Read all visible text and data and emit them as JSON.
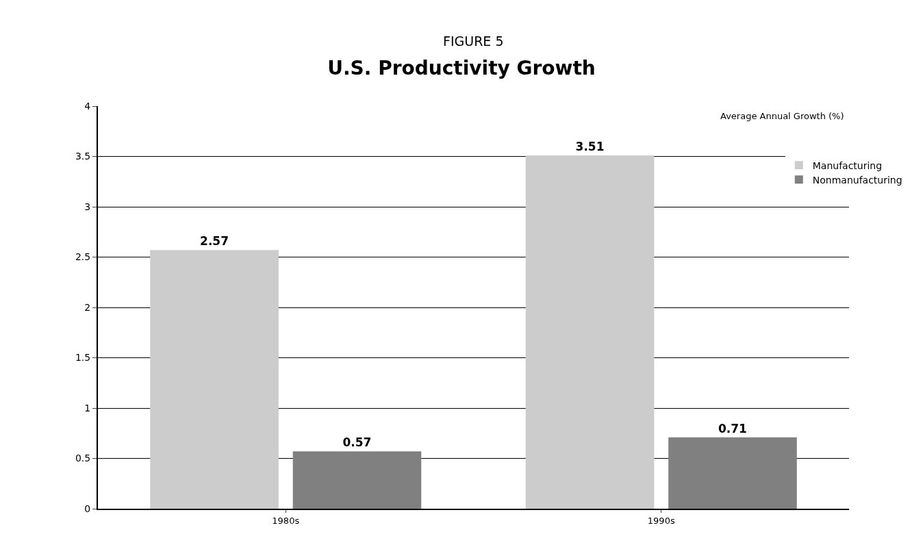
{
  "chart_data": {
    "type": "bar",
    "title": "U.S. Productivity Growth",
    "subtitle": "FIGURE 5",
    "ylabel": "Average Annual Growth (%)",
    "categories": [
      "1980s",
      "1990s"
    ],
    "series": [
      {
        "name": "Manufacturing",
        "color": "#cccccc",
        "values": [
          2.57,
          3.51
        ]
      },
      {
        "name": "Nonmanufacturing",
        "color": "#808080",
        "values": [
          0.57,
          0.71
        ]
      }
    ],
    "ylim": [
      0,
      4
    ],
    "yticks": [
      0,
      0.5,
      1,
      1.5,
      2,
      2.5,
      3,
      3.5,
      4
    ],
    "grid": "y",
    "legend": "top right",
    "data_labels": true
  }
}
